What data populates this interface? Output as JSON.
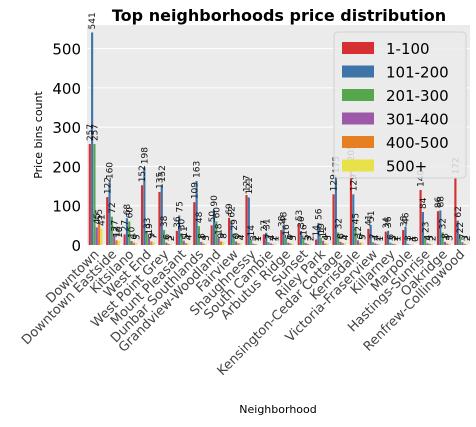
{
  "chart_data": {
    "type": "bar",
    "title": "Top neighborhoods price distribution",
    "xlabel": "Neighborhood",
    "ylabel": "Price bins count",
    "ylim": [
      0,
      560
    ],
    "yticks": [
      0,
      100,
      200,
      300,
      400,
      500
    ],
    "grid": true,
    "legend_position": "top-right",
    "categories": [
      "Downtown",
      "Downtown Eastside",
      "Kitsilano",
      "West End",
      "West Point Grey",
      "Mount Pleasant",
      "Dunbar Southlands",
      "Grandview-Woodland",
      "Fairview",
      "Shaughnessy",
      "South Cambie",
      "Arbutus Ridge",
      "Sunset",
      "Riley Park",
      "Kensington-Cedar Cottage",
      "Kerrisdale",
      "Victoria-Fraserview",
      "Killarney",
      "Marpole",
      "Hastings-Sunrise",
      "Oakridge",
      "Renfrew-Collingwood"
    ],
    "series": [
      {
        "name": "1-100",
        "color": "#d62f32",
        "values": [
          257,
          122,
          27,
          152,
          135,
          36,
          109,
          50,
          69,
          127,
          27,
          38,
          53,
          14,
          129,
          205,
          41,
          34,
          38,
          140,
          86,
          172
        ]
      },
      {
        "name": "101-200",
        "color": "#3d75a8",
        "values": [
          541,
          160,
          68,
          198,
          152,
          75,
          163,
          90,
          62,
          121,
          31,
          48,
          36,
          56,
          175,
          129,
          51,
          36,
          46,
          84,
          88,
          62
        ]
      },
      {
        "name": "201-300",
        "color": "#55a64d",
        "values": [
          257,
          72,
          60,
          33,
          38,
          30,
          48,
          60,
          29,
          14,
          7,
          16,
          16,
          19,
          32,
          45,
          7,
          6,
          3,
          23,
          32,
          22
        ]
      },
      {
        "name": "301-400",
        "color": "#9b59a8",
        "values": [
          45,
          27,
          10,
          19,
          6,
          11,
          8,
          18,
          9,
          3,
          4,
          6,
          5,
          11,
          8,
          12,
          4,
          3,
          1,
          4,
          8,
          7
        ]
      },
      {
        "name": "400-500",
        "color": "#e67e22",
        "values": [
          55,
          12,
          6,
          9,
          3,
          5,
          4,
          9,
          5,
          2,
          2,
          4,
          3,
          4,
          5,
          6,
          2,
          2,
          1,
          3,
          4,
          3
        ]
      },
      {
        "name": "500+",
        "color": "#e8e24a",
        "values": [
          41,
          10,
          5,
          7,
          2,
          4,
          3,
          8,
          4,
          1,
          1,
          3,
          2,
          3,
          4,
          5,
          1,
          1,
          0,
          2,
          3,
          2
        ]
      }
    ]
  }
}
